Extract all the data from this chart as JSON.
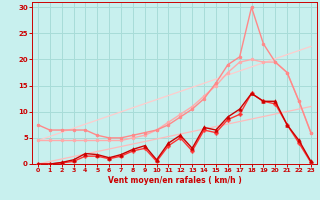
{
  "background_color": "#c8f0ee",
  "grid_color": "#a8dcd8",
  "xlabel": "Vent moyen/en rafales ( km/h )",
  "xlabel_color": "#cc0000",
  "tick_color": "#cc0000",
  "xlim": [
    -0.5,
    23.5
  ],
  "ylim": [
    0,
    31
  ],
  "xticks": [
    0,
    1,
    2,
    3,
    4,
    5,
    6,
    7,
    8,
    9,
    10,
    11,
    12,
    13,
    14,
    15,
    16,
    17,
    18,
    19,
    20,
    21,
    22,
    23
  ],
  "yticks": [
    0,
    5,
    10,
    15,
    20,
    25,
    30
  ],
  "lines": [
    {
      "x": [
        0,
        23
      ],
      "y": [
        0,
        11.0
      ],
      "color": "#ffbbbb",
      "linewidth": 0.9,
      "marker": null,
      "linestyle": "-"
    },
    {
      "x": [
        0,
        23
      ],
      "y": [
        4.5,
        22.5
      ],
      "color": "#ffcccc",
      "linewidth": 0.9,
      "marker": null,
      "linestyle": "-"
    },
    {
      "x": [
        0,
        1,
        2,
        3,
        4,
        5,
        6,
        7,
        8,
        9,
        10,
        11,
        12,
        13,
        14,
        15,
        16,
        17,
        18,
        19,
        20,
        21,
        22,
        23
      ],
      "y": [
        4.5,
        4.5,
        4.5,
        4.5,
        4.5,
        4.5,
        4.5,
        4.5,
        5.0,
        5.5,
        6.5,
        8.0,
        9.5,
        11.0,
        13.0,
        15.0,
        17.5,
        19.5,
        20.0,
        19.5,
        19.5,
        17.5,
        12.0,
        6.0
      ],
      "color": "#ffaaaa",
      "linewidth": 1.0,
      "marker": "o",
      "markersize": 2.0,
      "linestyle": "-"
    },
    {
      "x": [
        0,
        1,
        2,
        3,
        4,
        5,
        6,
        7,
        8,
        9,
        10,
        11,
        12,
        13,
        14,
        15,
        16,
        17,
        18,
        19,
        20,
        21,
        22,
        23
      ],
      "y": [
        7.5,
        6.5,
        6.5,
        6.5,
        6.5,
        5.5,
        5.0,
        5.0,
        5.5,
        6.0,
        6.5,
        7.5,
        9.0,
        10.5,
        12.5,
        15.5,
        19.0,
        20.5,
        30.0,
        23.0,
        19.5,
        17.5,
        12.0,
        6.0
      ],
      "color": "#ff8888",
      "linewidth": 1.0,
      "marker": "o",
      "markersize": 2.0,
      "linestyle": "-"
    },
    {
      "x": [
        0,
        1,
        2,
        3,
        4,
        5,
        6,
        7,
        8,
        9,
        10,
        11,
        12,
        13,
        14,
        15,
        16,
        17,
        18,
        19,
        20,
        21,
        22,
        23
      ],
      "y": [
        0,
        0,
        0.2,
        0.5,
        1.5,
        1.5,
        1.0,
        1.5,
        2.5,
        3.0,
        0.5,
        3.5,
        5.0,
        2.5,
        6.5,
        6.0,
        8.5,
        9.5,
        13.5,
        12.0,
        11.5,
        7.5,
        4.0,
        0.3
      ],
      "color": "#ff3333",
      "linewidth": 1.0,
      "marker": "P",
      "markersize": 2.5,
      "linestyle": "-"
    },
    {
      "x": [
        0,
        1,
        2,
        3,
        4,
        5,
        6,
        7,
        8,
        9,
        10,
        11,
        12,
        13,
        14,
        15,
        16,
        17,
        18,
        19,
        20,
        21,
        22,
        23
      ],
      "y": [
        0,
        0,
        0.3,
        0.8,
        2.0,
        1.8,
        1.2,
        1.8,
        2.8,
        3.5,
        0.8,
        4.0,
        5.5,
        3.0,
        7.0,
        6.5,
        9.0,
        10.5,
        13.5,
        12.0,
        12.0,
        7.5,
        4.5,
        0.5
      ],
      "color": "#cc0000",
      "linewidth": 1.0,
      "marker": "^",
      "markersize": 2.5,
      "linestyle": "-"
    }
  ]
}
